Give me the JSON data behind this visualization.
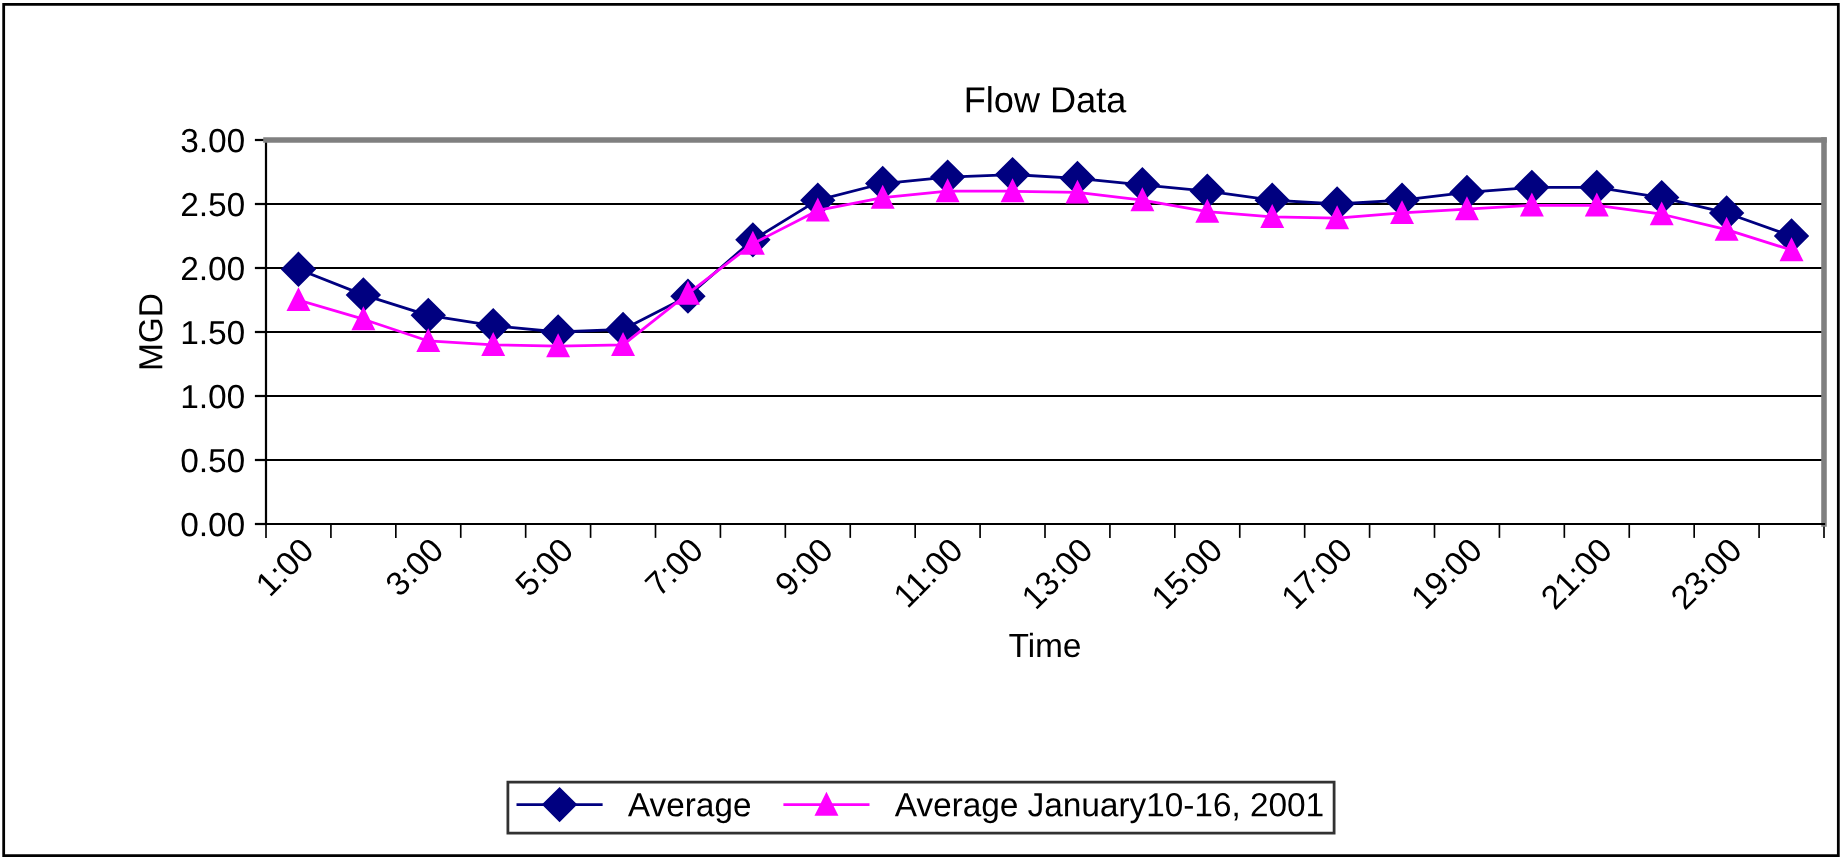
{
  "chart_data": {
    "type": "line",
    "title": "Flow Data",
    "xlabel": "Time",
    "ylabel": "MGD",
    "categories": [
      "1:00",
      null,
      "3:00",
      null,
      "5:00",
      null,
      "7:00",
      null,
      "9:00",
      null,
      "11:00",
      null,
      "13:00",
      null,
      "15:00",
      null,
      "17:00",
      null,
      "19:00",
      null,
      "21:00",
      null,
      "23:00",
      null
    ],
    "series": [
      {
        "name": "Average",
        "color": "#000080",
        "marker": "diamond",
        "values": [
          1.99,
          1.79,
          1.63,
          1.55,
          1.5,
          1.52,
          1.78,
          2.22,
          2.53,
          2.66,
          2.71,
          2.73,
          2.7,
          2.65,
          2.6,
          2.53,
          2.5,
          2.53,
          2.59,
          2.63,
          2.63,
          2.55,
          2.43,
          2.25
        ]
      },
      {
        "name": "Average January10-16, 2001",
        "color": "#ff00ff",
        "marker": "triangle",
        "values": [
          1.75,
          1.6,
          1.43,
          1.4,
          1.39,
          1.4,
          1.8,
          2.19,
          2.45,
          2.55,
          2.6,
          2.6,
          2.59,
          2.53,
          2.44,
          2.4,
          2.39,
          2.43,
          2.46,
          2.49,
          2.49,
          2.42,
          2.3,
          2.14
        ]
      }
    ],
    "ylim": [
      0,
      3
    ],
    "yticks": [
      {
        "value": 0,
        "label": "0.00"
      },
      {
        "value": 0.5,
        "label": "0.50"
      },
      {
        "value": 1,
        "label": "1.00"
      },
      {
        "value": 1.5,
        "label": "1.50"
      },
      {
        "value": 2,
        "label": "2.00"
      },
      {
        "value": 2.5,
        "label": "2.50"
      },
      {
        "value": 3,
        "label": "3.00"
      }
    ],
    "grid": "y",
    "legend": "bottom",
    "line_style": "solid"
  }
}
